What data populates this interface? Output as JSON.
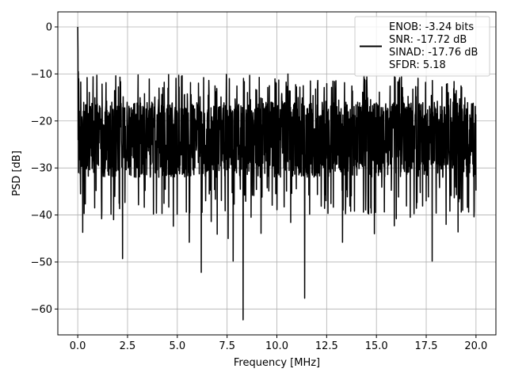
{
  "chart_data": {
    "type": "line",
    "title": "",
    "xlabel": "Frequency [MHz]",
    "ylabel": "PSD [dB]",
    "xlim": [
      -1,
      21
    ],
    "ylim": [
      -65.5,
      3.2
    ],
    "x_ticks": [
      0.0,
      2.5,
      5.0,
      7.5,
      10.0,
      12.5,
      15.0,
      17.5,
      20.0
    ],
    "x_tick_labels": [
      "0.0",
      "2.5",
      "5.0",
      "7.5",
      "10.0",
      "12.5",
      "15.0",
      "17.5",
      "20.0"
    ],
    "y_ticks": [
      0,
      -10,
      -20,
      -30,
      -40,
      -50,
      -60
    ],
    "y_tick_labels": [
      "0",
      "−10",
      "−20",
      "−30",
      "−40",
      "−50",
      "−60"
    ],
    "grid": true,
    "legend_position": "top-right",
    "series": [
      {
        "line_color": "#000000",
        "legend_lines": [
          "ENOB: -3.24 bits",
          "SNR: -17.72 dB",
          "SINAD: -17.76 dB",
          "SFDR: 5.18"
        ],
        "x_range": [
          0,
          20
        ],
        "points": 2000,
        "peak_x": 0.0,
        "peak_db": 0.0,
        "mean_db": -22.5,
        "band_top_db": -16,
        "band_bottom_db": -32,
        "max_level_db": -10,
        "dips": [
          {
            "x": 0.25,
            "y": -43.7
          },
          {
            "x": 0.32,
            "y": -39.7
          },
          {
            "x": 0.85,
            "y": -38.5
          },
          {
            "x": 1.2,
            "y": -40.8
          },
          {
            "x": 1.8,
            "y": -41.0
          },
          {
            "x": 2.25,
            "y": -49.3
          },
          {
            "x": 3.8,
            "y": -39.8
          },
          {
            "x": 4.8,
            "y": -42.4
          },
          {
            "x": 5.6,
            "y": -45.8
          },
          {
            "x": 6.2,
            "y": -52.2
          },
          {
            "x": 6.7,
            "y": -41.4
          },
          {
            "x": 7.0,
            "y": -44.1
          },
          {
            "x": 7.55,
            "y": -45.0
          },
          {
            "x": 7.8,
            "y": -49.8
          },
          {
            "x": 8.3,
            "y": -62.3
          },
          {
            "x": 8.7,
            "y": -40.5
          },
          {
            "x": 9.2,
            "y": -43.9
          },
          {
            "x": 10.0,
            "y": -38.9
          },
          {
            "x": 10.7,
            "y": -41.6
          },
          {
            "x": 11.4,
            "y": -57.7
          },
          {
            "x": 12.4,
            "y": -38.6
          },
          {
            "x": 13.3,
            "y": -45.8
          },
          {
            "x": 13.9,
            "y": -39.2
          },
          {
            "x": 14.9,
            "y": -44.0
          },
          {
            "x": 15.9,
            "y": -42.3
          },
          {
            "x": 16.0,
            "y": -40.8
          },
          {
            "x": 16.7,
            "y": -40.5
          },
          {
            "x": 17.8,
            "y": -49.8
          },
          {
            "x": 18.5,
            "y": -42.0
          },
          {
            "x": 19.1,
            "y": -43.6
          },
          {
            "x": 19.9,
            "y": -40.4
          }
        ]
      }
    ]
  }
}
